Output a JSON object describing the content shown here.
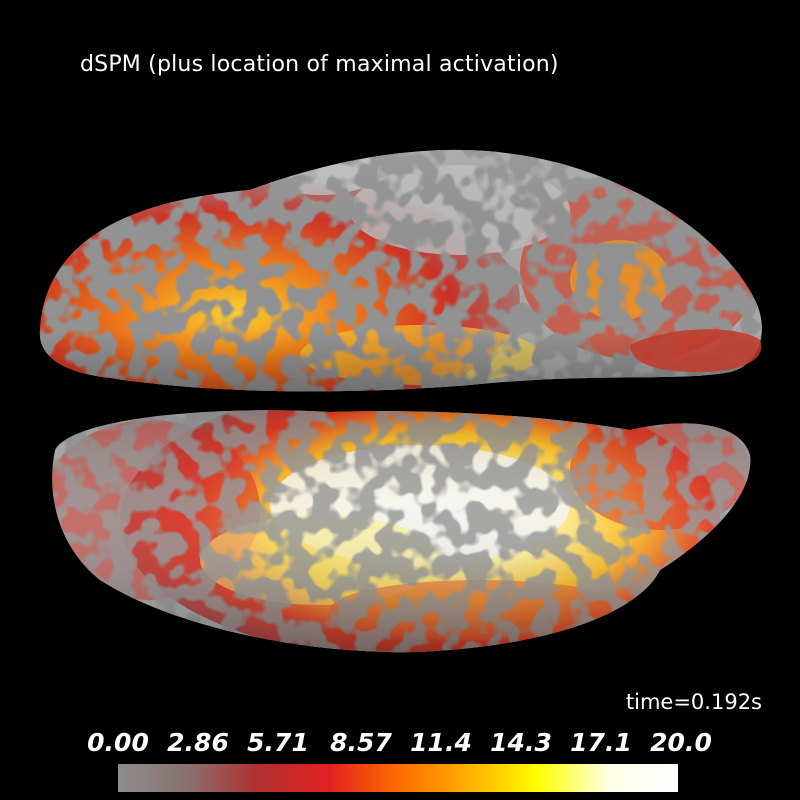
{
  "title": "dSPM (plus location of maximal activation)",
  "time_label": "time=0.192s",
  "colorbar": {
    "ticks": [
      "0.00",
      "2.86",
      "5.71",
      "8.57",
      "11.4",
      "14.3",
      "17.1",
      "20.0"
    ],
    "colors": [
      "#8c8c8c",
      "#8a7070",
      "#b03030",
      "#e02020",
      "#ff6a00",
      "#ffae00",
      "#ffff00",
      "#ffffe6",
      "#ffffff"
    ]
  },
  "surface_colors": {
    "sulcus": "#4a4a4a",
    "gyrus": "#a8a8a8",
    "red": "#d22a1e",
    "orange": "#f07010",
    "yellow": "#ffe030",
    "white": "#f2f2f2"
  }
}
